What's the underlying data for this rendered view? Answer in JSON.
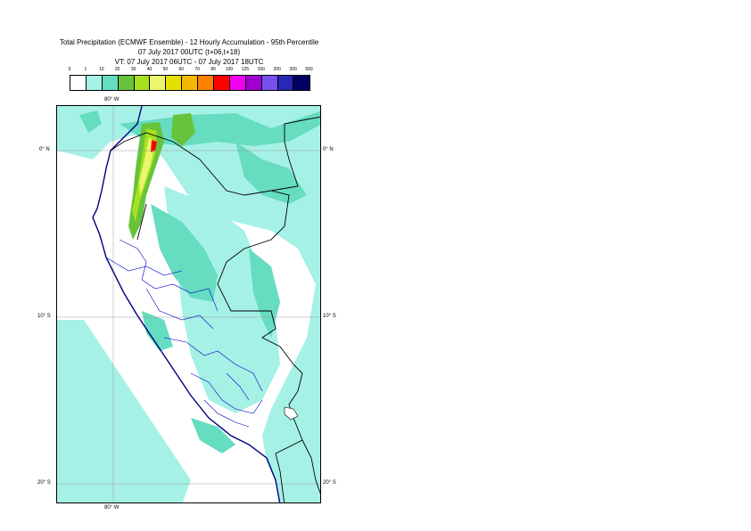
{
  "title": {
    "line1": "Total Precipitation (ECMWF Ensemble) - 12 Hourly Accumulation - 95th Percentile",
    "line2": "07 July 2017 00UTC (t+06,t+18)",
    "line3": "VT: 07 July 2017 06UTC - 07 July 2017 18UTC"
  },
  "legend": {
    "thresholds": [
      "0",
      "1",
      "10",
      "20",
      "30",
      "40",
      "50",
      "60",
      "70",
      "80",
      "100",
      "125",
      "150",
      "200",
      "300",
      "500"
    ],
    "colors": [
      "#ffffff",
      "#a6f1e6",
      "#66dcc0",
      "#66c33b",
      "#a6e01e",
      "#ebf66e",
      "#e6e000",
      "#f5b800",
      "#ff8000",
      "#ff0000",
      "#f000f0",
      "#a000d0",
      "#7850f0",
      "#2828b4",
      "#000064"
    ]
  },
  "gridlabels": {
    "lon_top": "80° W",
    "lon_bottom": "80° W",
    "lat_0_left": "0° N",
    "lat_0_right": "0° N",
    "lat_10_left": "10° S",
    "lat_10_right": "10° S",
    "lat_20_left": "20° S",
    "lat_20_right": "20° S"
  },
  "colors": {
    "light_cyan": "#a6f1e6",
    "cyan": "#66dcc0",
    "green": "#66c33b",
    "lime": "#a6e01e",
    "yellow": "#ebf66e",
    "red": "#ff0000",
    "coast": "#000080",
    "border": "#000000",
    "admin": "#0000cc"
  }
}
